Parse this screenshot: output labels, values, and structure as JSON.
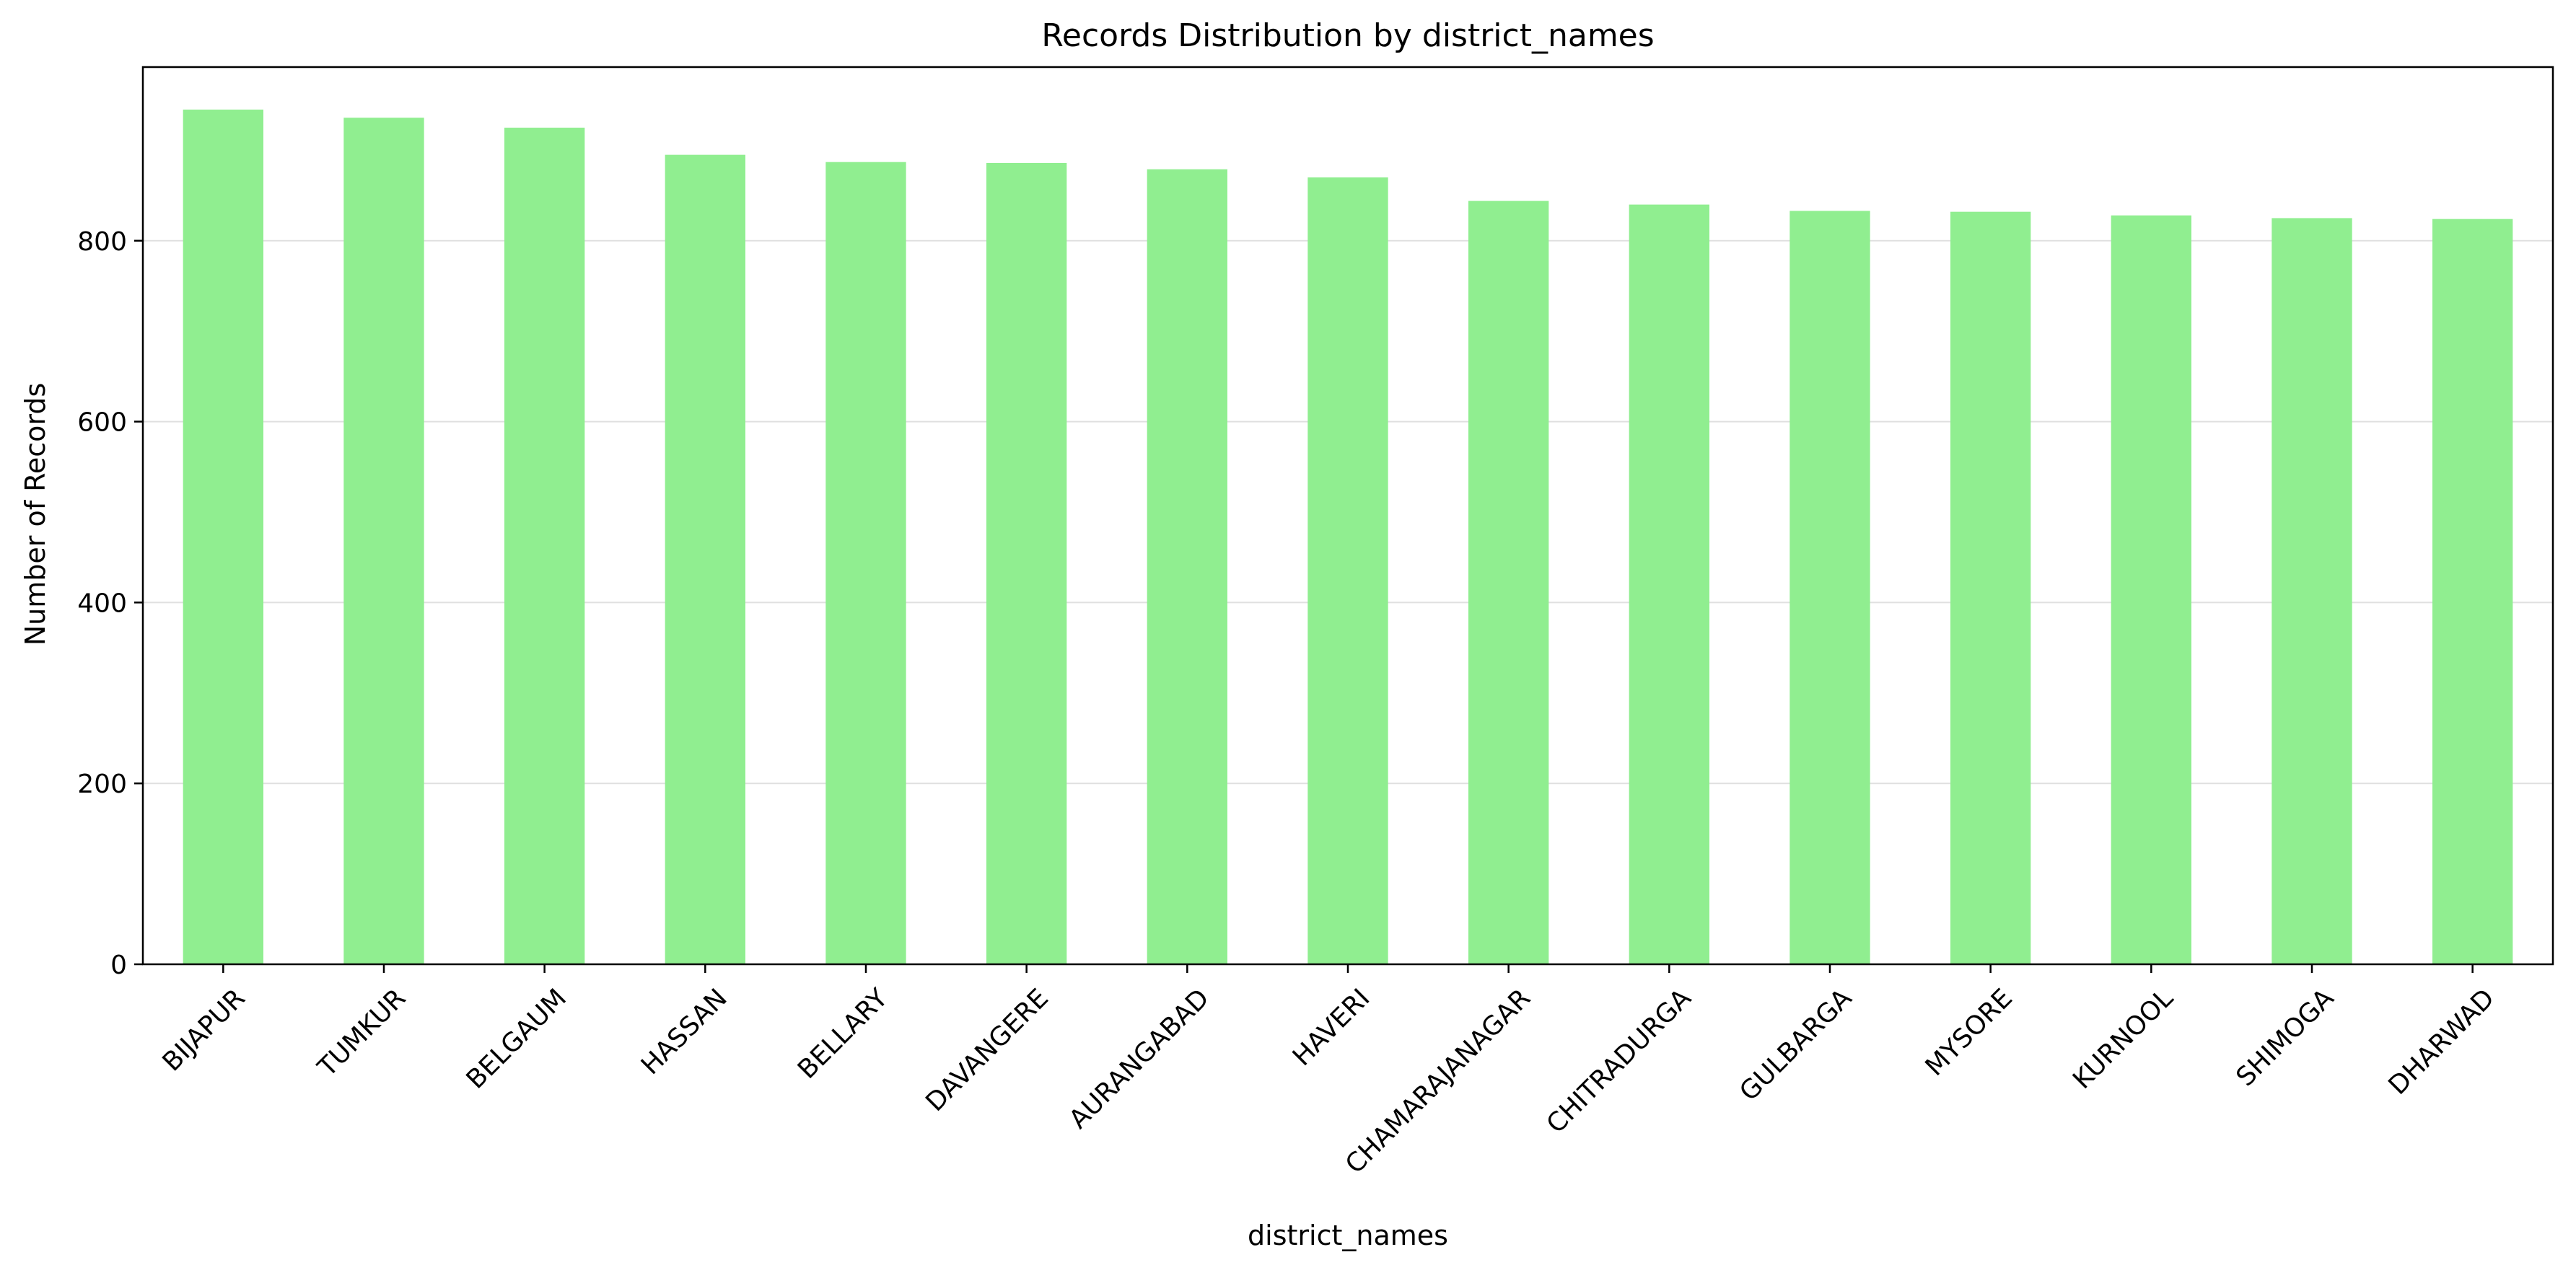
{
  "chart_data": {
    "type": "bar",
    "title": "Records Distribution by district_names",
    "xlabel": "district_names",
    "ylabel": "Number of Records",
    "categories": [
      "BIJAPUR",
      "TUMKUR",
      "BELGAUM",
      "HASSAN",
      "BELLARY",
      "DAVANGERE",
      "AURANGABAD",
      "HAVERI",
      "CHAMARAJANAGAR",
      "CHITRADURGA",
      "GULBARGA",
      "MYSORE",
      "KURNOOL",
      "SHIMOGA",
      "DHARWAD"
    ],
    "values": [
      945,
      936,
      925,
      895,
      887,
      886,
      879,
      870,
      844,
      840,
      833,
      832,
      828,
      825,
      824
    ],
    "ylim": [
      0,
      992
    ],
    "yticks": [
      0,
      200,
      400,
      600,
      800
    ],
    "grid": "horizontal",
    "bar_color": "#90EE90",
    "x_tick_rotation": 45
  }
}
